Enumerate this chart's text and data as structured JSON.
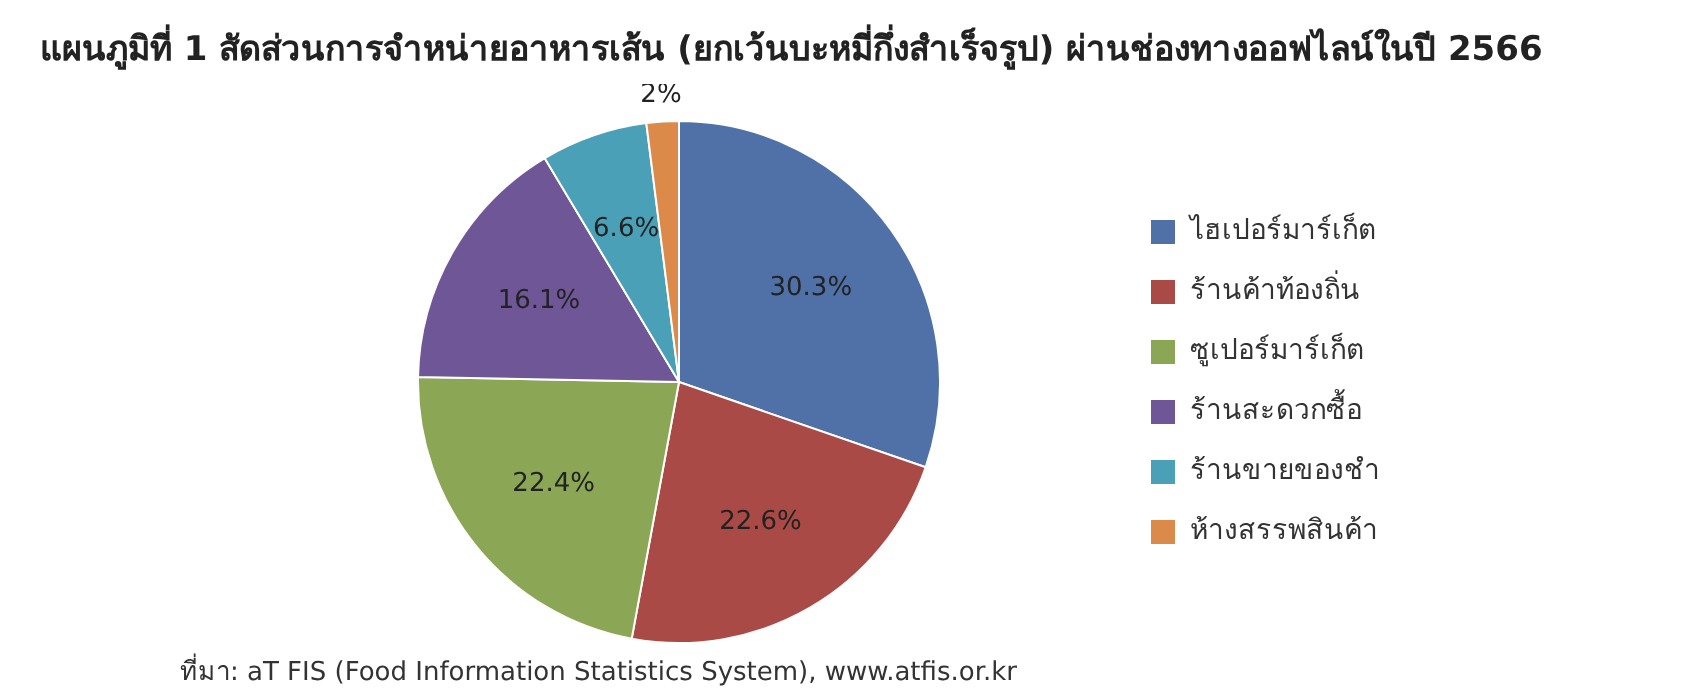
{
  "chart_data": {
    "type": "pie",
    "title": "แผนภูมิที่ 1 สัดส่วนการจำหน่ายอาหารเส้น (ยกเว้นบะหมี่กึ่งสำเร็จรูป) ผ่านช่องทางออฟไลน์ในปี 2566",
    "categories": [
      "ไฮเปอร์มาร์เก็ต",
      "ร้านค้าท้องถิ่น",
      "ซูเปอร์มาร์เก็ต",
      "ร้านสะดวกซื้อ",
      "ร้านขายของชำ",
      "ห้างสรรพสินค้า"
    ],
    "values": [
      30.3,
      22.6,
      22.4,
      16.1,
      6.6,
      2
    ],
    "value_labels": [
      "30.3%",
      "22.6%",
      "22.4%",
      "16.1%",
      "6.6%",
      "2%"
    ],
    "colors": [
      "#4f71a8",
      "#a94a47",
      "#8ba654",
      "#6f5697",
      "#4aa0b7",
      "#dc8a4a"
    ],
    "legend": "right",
    "annotations": [
      "ที่มา: aT FIS (Food Information Statistics System), www.atfis.or.kr"
    ]
  }
}
